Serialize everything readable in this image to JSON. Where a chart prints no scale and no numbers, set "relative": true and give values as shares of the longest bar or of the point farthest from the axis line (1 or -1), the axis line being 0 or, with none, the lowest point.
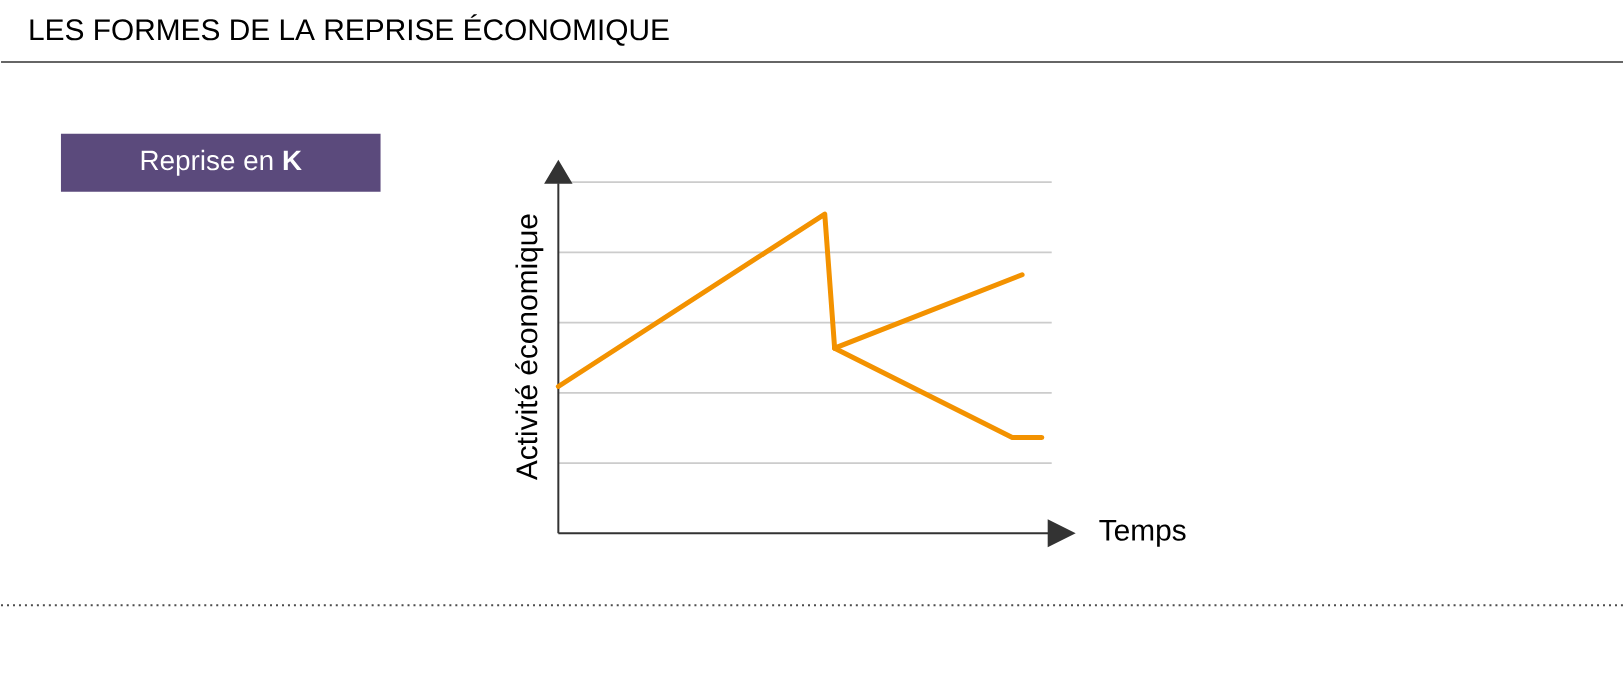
{
  "chart_data": {
    "type": "line",
    "title": "LES FORMES DE LA REPRISE ÉCONOMIQUE",
    "subtitle": "Reprise en **K**",
    "xlabel": "Temps",
    "ylabel": "Activité économique",
    "relative": true,
    "grid": "y",
    "marker": "none",
    "line_style": "solid",
    "categories": [
      null,
      null,
      null,
      null,
      null,
      null,
      null,
      null,
      null,
      null,
      null,
      null,
      null,
      null,
      null,
      null,
      null,
      null,
      null,
      null,
      null,
      null,
      null,
      null,
      null,
      null,
      null,
      null,
      null,
      null,
      null,
      null,
      null,
      null,
      null,
      null,
      null,
      null,
      null,
      null,
      null,
      null,
      null,
      null,
      null,
      null,
      null,
      null,
      null,
      null
    ],
    "series": [
      {
        "color": "#f39200",
        "values": [
          0.46,
          null,
          null,
          null,
          null,
          null,
          null,
          null,
          null,
          null,
          null,
          null,
          null,
          null,
          null,
          null,
          null,
          null,
          null,
          null,
          null,
          null,
          null,
          null,
          null,
          null,
          null,
          1,
          0.58,
          null,
          null,
          null,
          null,
          null,
          null,
          null,
          null,
          null,
          null,
          null,
          null,
          null,
          null,
          null,
          null,
          null,
          null,
          null,
          null,
          null
        ]
      },
      {
        "color": "#f39200",
        "values": [
          null,
          null,
          null,
          null,
          null,
          null,
          null,
          null,
          null,
          null,
          null,
          null,
          null,
          null,
          null,
          null,
          null,
          null,
          null,
          null,
          null,
          null,
          null,
          null,
          null,
          null,
          null,
          null,
          0.58,
          null,
          null,
          null,
          null,
          null,
          null,
          null,
          null,
          null,
          null,
          null,
          null,
          null,
          null,
          null,
          null,
          null,
          null,
          0.81,
          null,
          null
        ]
      },
      {
        "color": "#f39200",
        "values": [
          null,
          null,
          null,
          null,
          null,
          null,
          null,
          null,
          null,
          null,
          null,
          null,
          null,
          null,
          null,
          null,
          null,
          null,
          null,
          null,
          null,
          null,
          null,
          null,
          null,
          null,
          null,
          null,
          0.58,
          null,
          null,
          null,
          null,
          null,
          null,
          null,
          null,
          null,
          null,
          null,
          null,
          null,
          null,
          null,
          null,
          null,
          0.3,
          null,
          null,
          0.3
        ]
      }
    ]
  }
}
